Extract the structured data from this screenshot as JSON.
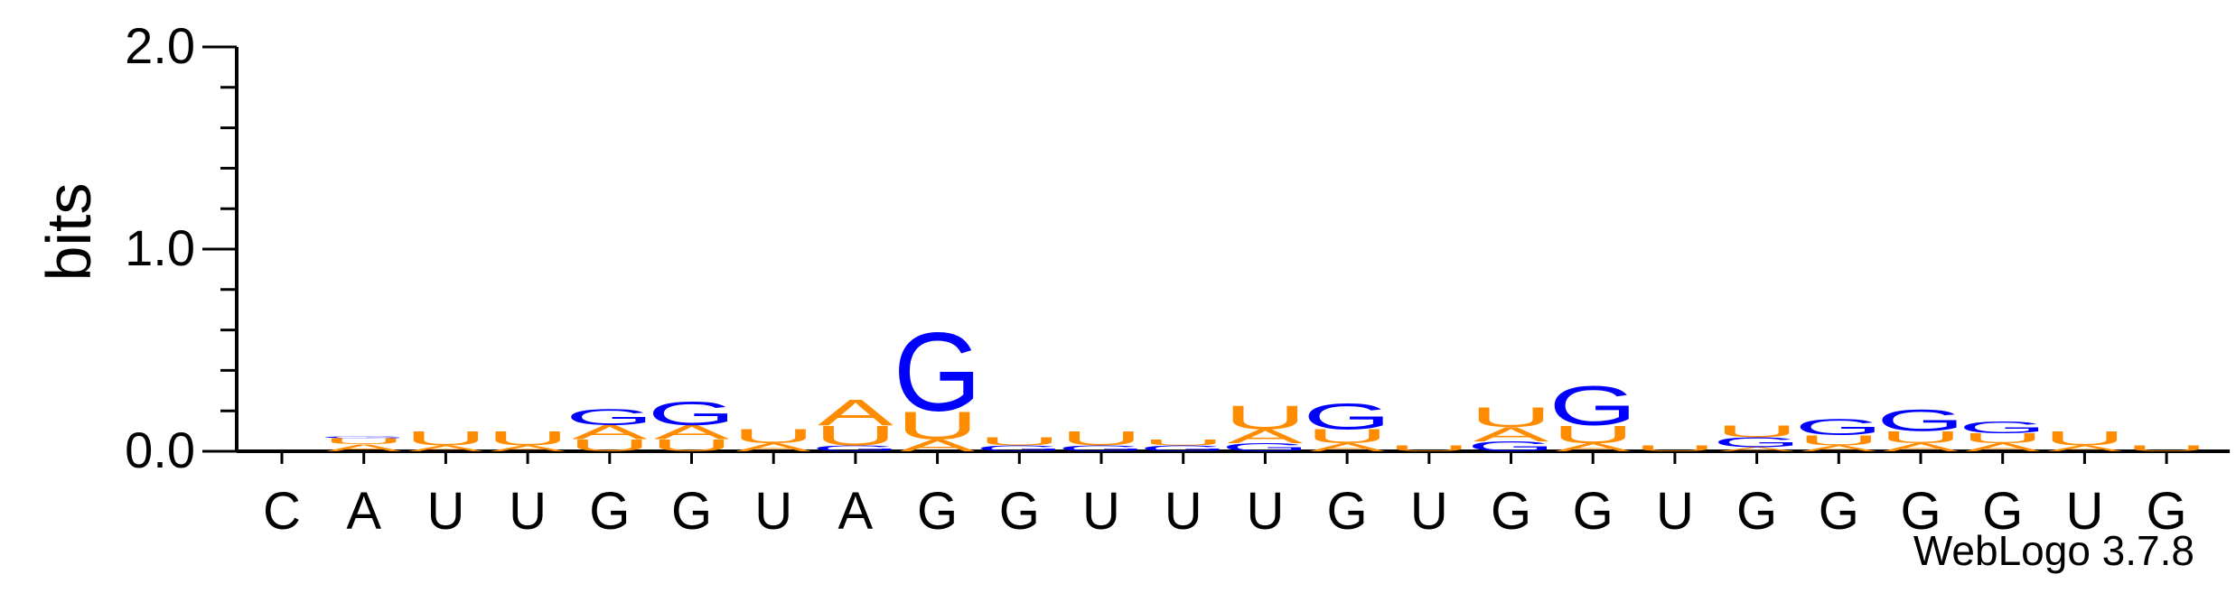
{
  "credit": "WebLogo 3.7.8",
  "colors": {
    "A": "#ff8c00",
    "U": "#ff8c00",
    "G": "#0000ff",
    "C": "#0000ff"
  },
  "chart_data": {
    "type": "sequence-logo",
    "ylabel": "bits",
    "ylim": [
      0,
      2
    ],
    "yticks": [
      "0.0",
      "1.0",
      "2.0"
    ],
    "categories": [
      "C",
      "A",
      "U",
      "U",
      "G",
      "G",
      "U",
      "A",
      "G",
      "G",
      "U",
      "U",
      "U",
      "G",
      "U",
      "G",
      "G",
      "U",
      "G",
      "G",
      "G",
      "G",
      "U",
      "G"
    ],
    "stacks": [
      [],
      [
        {
          "letter": "A",
          "bits": 0.035
        },
        {
          "letter": "U",
          "bits": 0.03
        },
        {
          "letter": "G",
          "bits": 0.01
        }
      ],
      [
        {
          "letter": "A",
          "bits": 0.03
        },
        {
          "letter": "U",
          "bits": 0.07
        }
      ],
      [
        {
          "letter": "A",
          "bits": 0.03
        },
        {
          "letter": "U",
          "bits": 0.07
        }
      ],
      [
        {
          "letter": "U",
          "bits": 0.06
        },
        {
          "letter": "A",
          "bits": 0.07
        },
        {
          "letter": "G",
          "bits": 0.08
        }
      ],
      [
        {
          "letter": "U",
          "bits": 0.06
        },
        {
          "letter": "A",
          "bits": 0.07
        },
        {
          "letter": "G",
          "bits": 0.12
        }
      ],
      [
        {
          "letter": "A",
          "bits": 0.04
        },
        {
          "letter": "U",
          "bits": 0.07
        }
      ],
      [
        {
          "letter": "G",
          "bits": 0.03
        },
        {
          "letter": "U",
          "bits": 0.1
        },
        {
          "letter": "A",
          "bits": 0.13
        }
      ],
      [
        {
          "letter": "A",
          "bits": 0.06
        },
        {
          "letter": "U",
          "bits": 0.14
        },
        {
          "letter": "G",
          "bits": 0.4
        }
      ],
      [
        {
          "letter": "G",
          "bits": 0.03
        },
        {
          "letter": "U",
          "bits": 0.04
        }
      ],
      [
        {
          "letter": "G",
          "bits": 0.03
        },
        {
          "letter": "U",
          "bits": 0.07
        }
      ],
      [
        {
          "letter": "G",
          "bits": 0.03
        },
        {
          "letter": "U",
          "bits": 0.03
        }
      ],
      [
        {
          "letter": "G",
          "bits": 0.04
        },
        {
          "letter": "A",
          "bits": 0.07
        },
        {
          "letter": "U",
          "bits": 0.12
        }
      ],
      [
        {
          "letter": "A",
          "bits": 0.04
        },
        {
          "letter": "U",
          "bits": 0.07
        },
        {
          "letter": "G",
          "bits": 0.13
        }
      ],
      [
        {
          "letter": "U",
          "bits": 0.03
        }
      ],
      [
        {
          "letter": "G",
          "bits": 0.05
        },
        {
          "letter": "A",
          "bits": 0.07
        },
        {
          "letter": "U",
          "bits": 0.1
        }
      ],
      [
        {
          "letter": "A",
          "bits": 0.04
        },
        {
          "letter": "U",
          "bits": 0.09
        },
        {
          "letter": "G",
          "bits": 0.2
        }
      ],
      [
        {
          "letter": "U",
          "bits": 0.03
        }
      ],
      [
        {
          "letter": "A",
          "bits": 0.02
        },
        {
          "letter": "G",
          "bits": 0.05
        },
        {
          "letter": "U",
          "bits": 0.06
        }
      ],
      [
        {
          "letter": "A",
          "bits": 0.03
        },
        {
          "letter": "U",
          "bits": 0.05
        },
        {
          "letter": "G",
          "bits": 0.08
        }
      ],
      [
        {
          "letter": "A",
          "bits": 0.04
        },
        {
          "letter": "U",
          "bits": 0.06
        },
        {
          "letter": "G",
          "bits": 0.11
        }
      ],
      [
        {
          "letter": "A",
          "bits": 0.04
        },
        {
          "letter": "U",
          "bits": 0.05
        },
        {
          "letter": "G",
          "bits": 0.06
        }
      ],
      [
        {
          "letter": "A",
          "bits": 0.03
        },
        {
          "letter": "U",
          "bits": 0.07
        }
      ],
      [
        {
          "letter": "U",
          "bits": 0.03
        }
      ]
    ]
  }
}
